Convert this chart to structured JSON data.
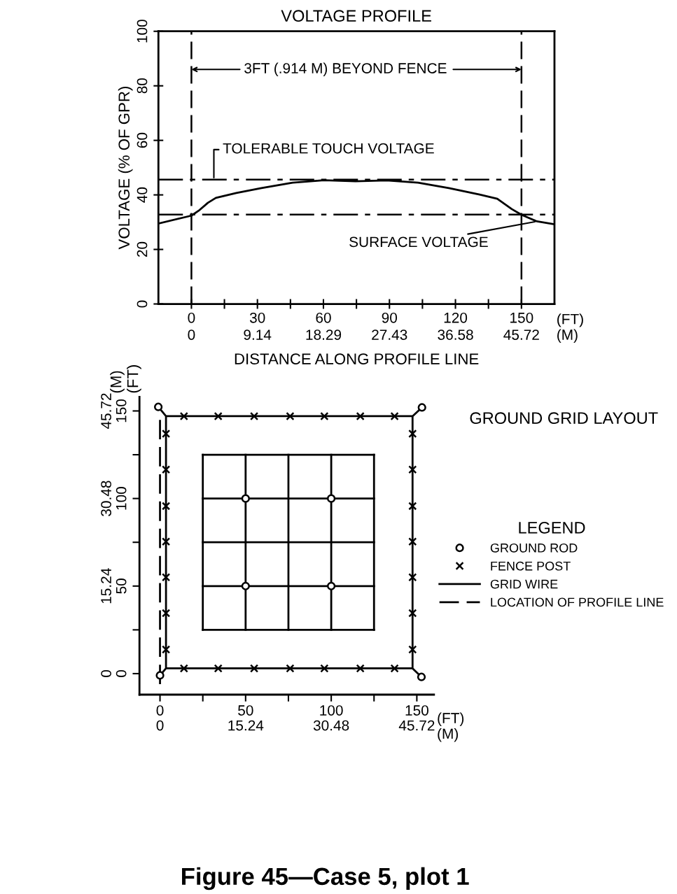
{
  "chart_data": [
    {
      "type": "line",
      "title": "VOLTAGE PROFILE",
      "xlabel": "DISTANCE ALONG PROFILE LINE",
      "ylabel": "VOLTAGE (% OF GPR)",
      "xlim": [
        -15,
        165
      ],
      "ylim": [
        0,
        100
      ],
      "xticks": [
        0,
        {
          "value": 15,
          "label": null
        },
        30,
        {
          "value": 45,
          "label": null
        },
        60,
        {
          "value": 75,
          "label": null
        },
        90,
        {
          "value": 105,
          "label": null
        },
        120,
        {
          "value": 135,
          "label": null
        },
        150
      ],
      "x2lim": [
        -4.572,
        50.292
      ],
      "x2ticks": [
        0,
        9.14,
        18.29,
        27.43,
        36.58,
        45.72
      ],
      "yticks": [
        0,
        20,
        40,
        60,
        80,
        100
      ],
      "grid": false,
      "legend": false,
      "series": [
        {
          "color": "#000000",
          "line_style": "solid",
          "marker": "none",
          "x": [
            -15,
            0,
            3.3,
            7.5,
            11.1,
            20.4,
            31.8,
            46,
            60.3,
            74.5,
            88.7,
            103,
            117,
            131,
            139,
            145.6,
            150,
            157,
            165
          ],
          "values": [
            29.5,
            32.4,
            34.2,
            37.1,
            38.9,
            40.7,
            42.5,
            44.5,
            45.4,
            45,
            45.3,
            44.5,
            42.5,
            40.1,
            38.6,
            34.8,
            32.7,
            30.3,
            29.2
          ]
        }
      ],
      "ref_lines": [
        {
          "axis": "y",
          "value": 45.6,
          "label": "TOLERABLE TOUCH VOLTAGE",
          "color": "#000000",
          "line_style": "dashed"
        },
        {
          "axis": "y",
          "value": 32.8,
          "color": "#000000",
          "line_style": "dashed"
        },
        {
          "axis": "x",
          "value": 0,
          "color": "#000000",
          "line_style": "dashed"
        },
        {
          "axis": "x",
          "value": 150,
          "color": "#000000",
          "line_style": "dashed"
        }
      ],
      "annotations": [
        {
          "text": "3FT (.914 M) BEYOND FENCE",
          "x": 150,
          "y": 86
        },
        {
          "text": "SURFACE VOLTAGE",
          "x": 157,
          "y": 30.3
        },
        "(FT)\n(M)"
      ]
    },
    {
      "type": "line",
      "legend_title": "LEGEND",
      "xlim": [
        -12,
        160
      ],
      "ylim": [
        -12,
        158
      ],
      "xticks": [
        0,
        {
          "value": 25,
          "label": null
        },
        50,
        {
          "value": 75,
          "label": null
        },
        100,
        {
          "value": 125,
          "label": null
        },
        150
      ],
      "x2lim": [
        -3.6576,
        48.768
      ],
      "x2ticks": [
        0,
        15.24,
        30.48,
        45.72
      ],
      "yticks": [
        0,
        {
          "value": 25,
          "label": null
        },
        50,
        {
          "value": 75,
          "label": null
        },
        100,
        {
          "value": 125,
          "label": null
        },
        150
      ],
      "y2lim": [
        -3.6576,
        48.1584
      ],
      "y2ticks": [
        0,
        15.24,
        30.48,
        45.72
      ],
      "grid": false,
      "legend": "right",
      "series": [
        {
          "name": "GROUND ROD",
          "type": "scatter",
          "color": "#000000",
          "marker": "circle",
          "x": [
            -1,
            153,
            152.7,
            0,
            50,
            100,
            50,
            100
          ],
          "values": [
            152.3,
            152,
            -1.9,
            -1,
            50,
            50,
            100,
            100
          ]
        },
        {
          "name": "FENCE POST",
          "type": "scatter",
          "color": "#000000",
          "marker": "cross",
          "x": [
            14,
            34,
            55,
            76,
            96,
            117,
            137,
            14,
            34,
            55,
            76,
            96,
            117,
            137,
            3.5,
            3.5,
            3.5,
            3.5,
            3.5,
            3.5,
            3.5,
            147.5,
            147.5,
            147.5,
            147.5,
            147.5,
            147.5,
            147.5
          ],
          "values": [
            3,
            3,
            3,
            3,
            3,
            3,
            3,
            147,
            147,
            147,
            147,
            147,
            147,
            147,
            13.8,
            34.5,
            55,
            75.4,
            95.7,
            116.5,
            137,
            13.8,
            34.5,
            55,
            75.4,
            95.7,
            116.5,
            137
          ]
        },
        {
          "color": "#000000",
          "line_style": "solid",
          "marker": "none",
          "x": [
            0,
            3.5,
            147.5,
            152.7,
            147.5,
            147.5,
            153,
            147.5,
            3.5,
            -1,
            3.5,
            3.5
          ],
          "values": [
            -1,
            3,
            3,
            -1.9,
            3,
            147,
            152,
            147,
            147,
            152.3,
            147,
            3
          ]
        },
        {
          "name": "GRID WIRE",
          "color": "#000000",
          "line_style": "solid",
          "marker": "none",
          "x": [
            25,
            125
          ],
          "values": [
            25,
            25
          ]
        },
        {
          "color": "#000000",
          "line_style": "solid",
          "marker": "none",
          "x": [
            25,
            125
          ],
          "values": [
            50,
            50
          ]
        },
        {
          "color": "#000000",
          "line_style": "solid",
          "marker": "none",
          "x": [
            25,
            125
          ],
          "values": [
            75,
            75
          ]
        },
        {
          "color": "#000000",
          "line_style": "solid",
          "marker": "none",
          "x": [
            25,
            125
          ],
          "values": [
            100,
            100
          ]
        },
        {
          "color": "#000000",
          "line_style": "solid",
          "marker": "none",
          "x": [
            25,
            125
          ],
          "values": [
            125,
            125
          ]
        },
        {
          "color": "#000000",
          "line_style": "solid",
          "marker": "none",
          "x": [
            25,
            25
          ],
          "values": [
            25,
            125
          ]
        },
        {
          "color": "#000000",
          "line_style": "solid",
          "marker": "none",
          "x": [
            50,
            50
          ],
          "values": [
            25,
            125
          ]
        },
        {
          "color": "#000000",
          "line_style": "solid",
          "marker": "none",
          "x": [
            75,
            75
          ],
          "values": [
            25,
            125
          ]
        },
        {
          "color": "#000000",
          "line_style": "solid",
          "marker": "none",
          "x": [
            100,
            100
          ],
          "values": [
            25,
            125
          ]
        },
        {
          "color": "#000000",
          "line_style": "solid",
          "marker": "none",
          "x": [
            125,
            125
          ],
          "values": [
            25,
            125
          ]
        },
        {
          "name": "LOCATION OF PROFILE LINE",
          "color": "#000000",
          "line_style": "dashed",
          "marker": "none",
          "x": [
            0,
            0
          ],
          "values": [
            -6,
            148
          ]
        }
      ],
      "annotations": [
        "GROUND GRID LAYOUT",
        "(FT)\n(M)",
        "Figure 45—Case 5, plot 1",
        "(M)\n(FT)"
      ]
    }
  ]
}
